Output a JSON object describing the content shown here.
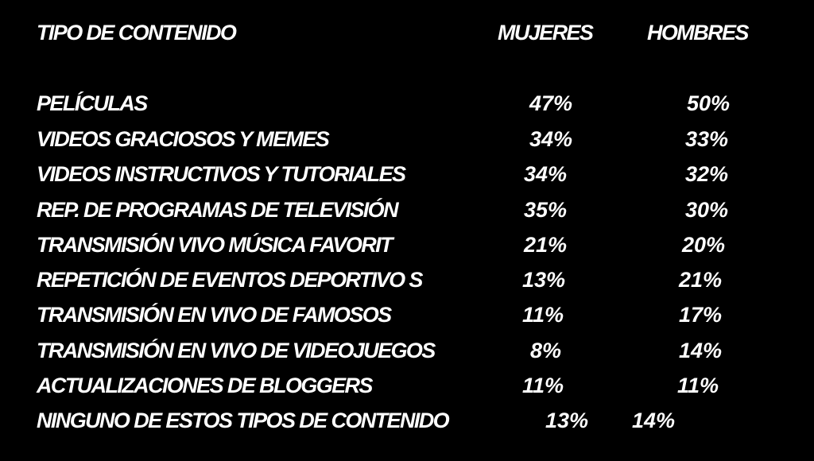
{
  "header": {
    "tipo": "TIPO DE CONTENIDO",
    "mujeres": "MUJERES",
    "hombres": "HOMBRES"
  },
  "rows": [
    {
      "label": "PELÍCULAS",
      "mujeres": "47%",
      "hombres": "50%"
    },
    {
      "label": "VIDEOS GRACIOSOS Y MEMES",
      "mujeres": "34%",
      "hombres": "33%"
    },
    {
      "label": "VIDEOS INSTRUCTIVOS Y TUTORIALES",
      "mujeres": "34%",
      "hombres": "32%"
    },
    {
      "label": "REP. DE PROGRAMAS DE TELEVISIÓN",
      "mujeres": "35%",
      "hombres": "30%"
    },
    {
      "label": "TRANSMISIÓN  VIVO  MÚSICA FAVORIT",
      "mujeres": "21%",
      "hombres": "20%"
    },
    {
      "label": "REPETICIÓN DE EVENTOS DEPORTIVO S",
      "mujeres": "13%",
      "hombres": "21%"
    },
    {
      "label": "TRANSMISIÓN EN VIVO DE FAMOSOS",
      "mujeres": "11%",
      "hombres": "17%"
    },
    {
      "label": "TRANSMISIÓN EN VIVO DE VIDEOJUEGOS",
      "mujeres": "8%",
      "hombres": "14%"
    },
    {
      "label": "ACTUALIZACIONES DE BLOGGERS",
      "mujeres": "11%",
      "hombres": "11%"
    },
    {
      "label": "NINGUNO DE ESTOS TIPOS DE CONTENIDO",
      "mujeres": "13%",
      "hombres": "14%"
    }
  ]
}
